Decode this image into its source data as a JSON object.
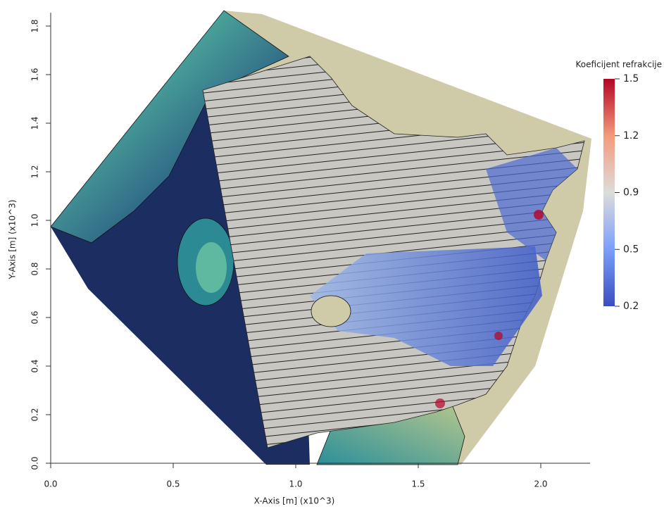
{
  "chart_data": {
    "type": "contour",
    "xlabel": "X-Axis [m] (x10^3)",
    "ylabel": "Y-Axis [m] (x10^3)",
    "xlim": [
      0,
      2.2
    ],
    "ylim": [
      0,
      1.85
    ],
    "xticks": [
      {
        "value": 0,
        "label": "0.0"
      },
      0.5,
      {
        "value": 1,
        "label": "1.0"
      },
      1.5,
      {
        "value": 2,
        "label": "2.0"
      }
    ],
    "yticks": [
      {
        "value": 0,
        "label": "0.0"
      },
      0.2,
      0.4,
      0.6,
      0.8,
      {
        "value": 1,
        "label": "1.0"
      },
      1.2,
      1.4,
      1.6,
      1.8
    ],
    "colorbar": {
      "title": "Koeficijent refrakcije",
      "lim": [
        0.2,
        1.5
      ],
      "ticks": [
        0.2,
        {
          "value": 0.525,
          "label": "0.5"
        },
        {
          "value": 0.85,
          "label": "0.9"
        },
        {
          "value": 1.175,
          "label": "1.2"
        },
        1.5
      ],
      "colors": [
        "#3b4cc0",
        "#7b9ff9",
        "#dddcdc",
        "#f39b7a",
        "#b40426"
      ]
    }
  }
}
